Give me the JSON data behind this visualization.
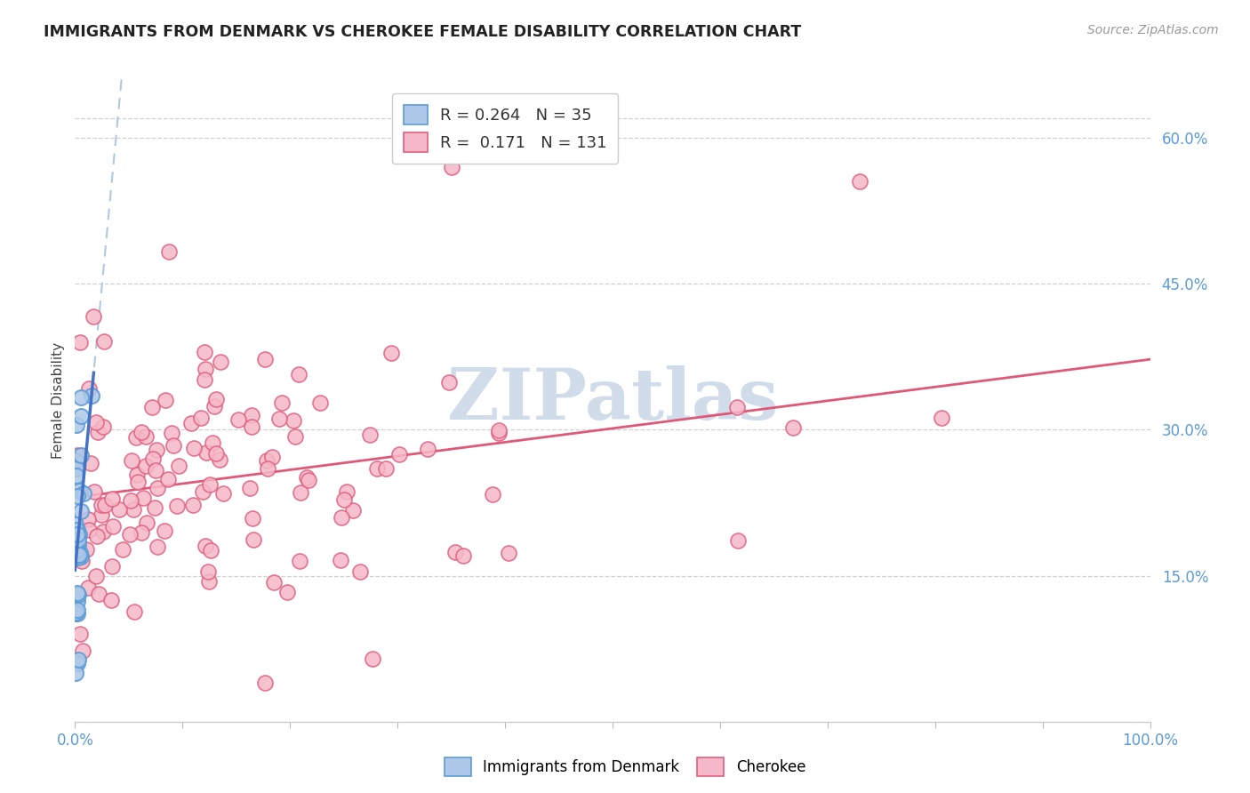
{
  "title": "IMMIGRANTS FROM DENMARK VS CHEROKEE FEMALE DISABILITY CORRELATION CHART",
  "source": "Source: ZipAtlas.com",
  "ylabel": "Female Disability",
  "ytick_vals": [
    0.15,
    0.3,
    0.45,
    0.6
  ],
  "xlim": [
    0.0,
    1.0
  ],
  "ylim": [
    0.0,
    0.66
  ],
  "legend1_r": "0.264",
  "legend1_n": "35",
  "legend2_r": "0.171",
  "legend2_n": "131",
  "color_denmark_face": "#adc8e8",
  "color_denmark_edge": "#5b9bd5",
  "color_cherokee_face": "#f5b8c8",
  "color_cherokee_edge": "#e06080",
  "trendline_denmark_dashed": "#b0c8e0",
  "trendline_cherokee_color": "#e05878",
  "trendline_denmark_solid": "#4472c4",
  "watermark_color": "#d0dcea",
  "background": "#ffffff",
  "grid_color": "#d0d0d0",
  "tick_color": "#5b9bd5",
  "title_color": "#222222",
  "source_color": "#999999",
  "ylabel_color": "#444444"
}
